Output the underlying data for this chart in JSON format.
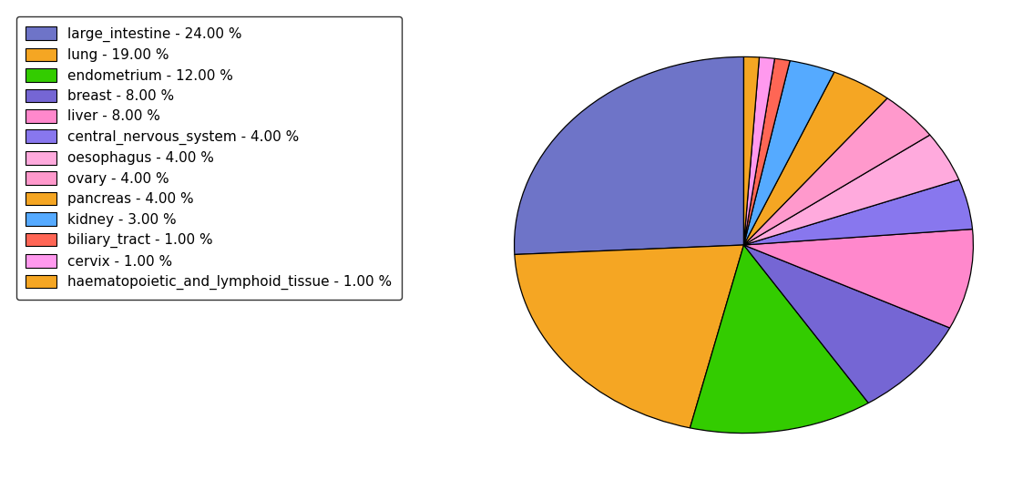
{
  "labels": [
    "large_intestine - 24.00 %",
    "lung - 19.00 %",
    "endometrium - 12.00 %",
    "breast - 8.00 %",
    "liver - 8.00 %",
    "central_nervous_system - 4.00 %",
    "oesophagus - 4.00 %",
    "ovary - 4.00 %",
    "pancreas - 4.00 %",
    "kidney - 3.00 %",
    "biliary_tract - 1.00 %",
    "cervix - 1.00 %",
    "haematopoietic_and_lymphoid_tissue - 1.00 %"
  ],
  "values": [
    24,
    19,
    12,
    8,
    8,
    4,
    4,
    4,
    4,
    3,
    1,
    1,
    1
  ],
  "colors": [
    "#6e74c8",
    "#f5a623",
    "#33cc00",
    "#7566d4",
    "#ff88cc",
    "#8877ee",
    "#ffaadd",
    "#ff99cc",
    "#f5a623",
    "#55aaff",
    "#ff6655",
    "#ff99ee",
    "#f5a623"
  ],
  "startangle": 90,
  "figsize": [
    11.34,
    5.38
  ],
  "dpi": 100
}
